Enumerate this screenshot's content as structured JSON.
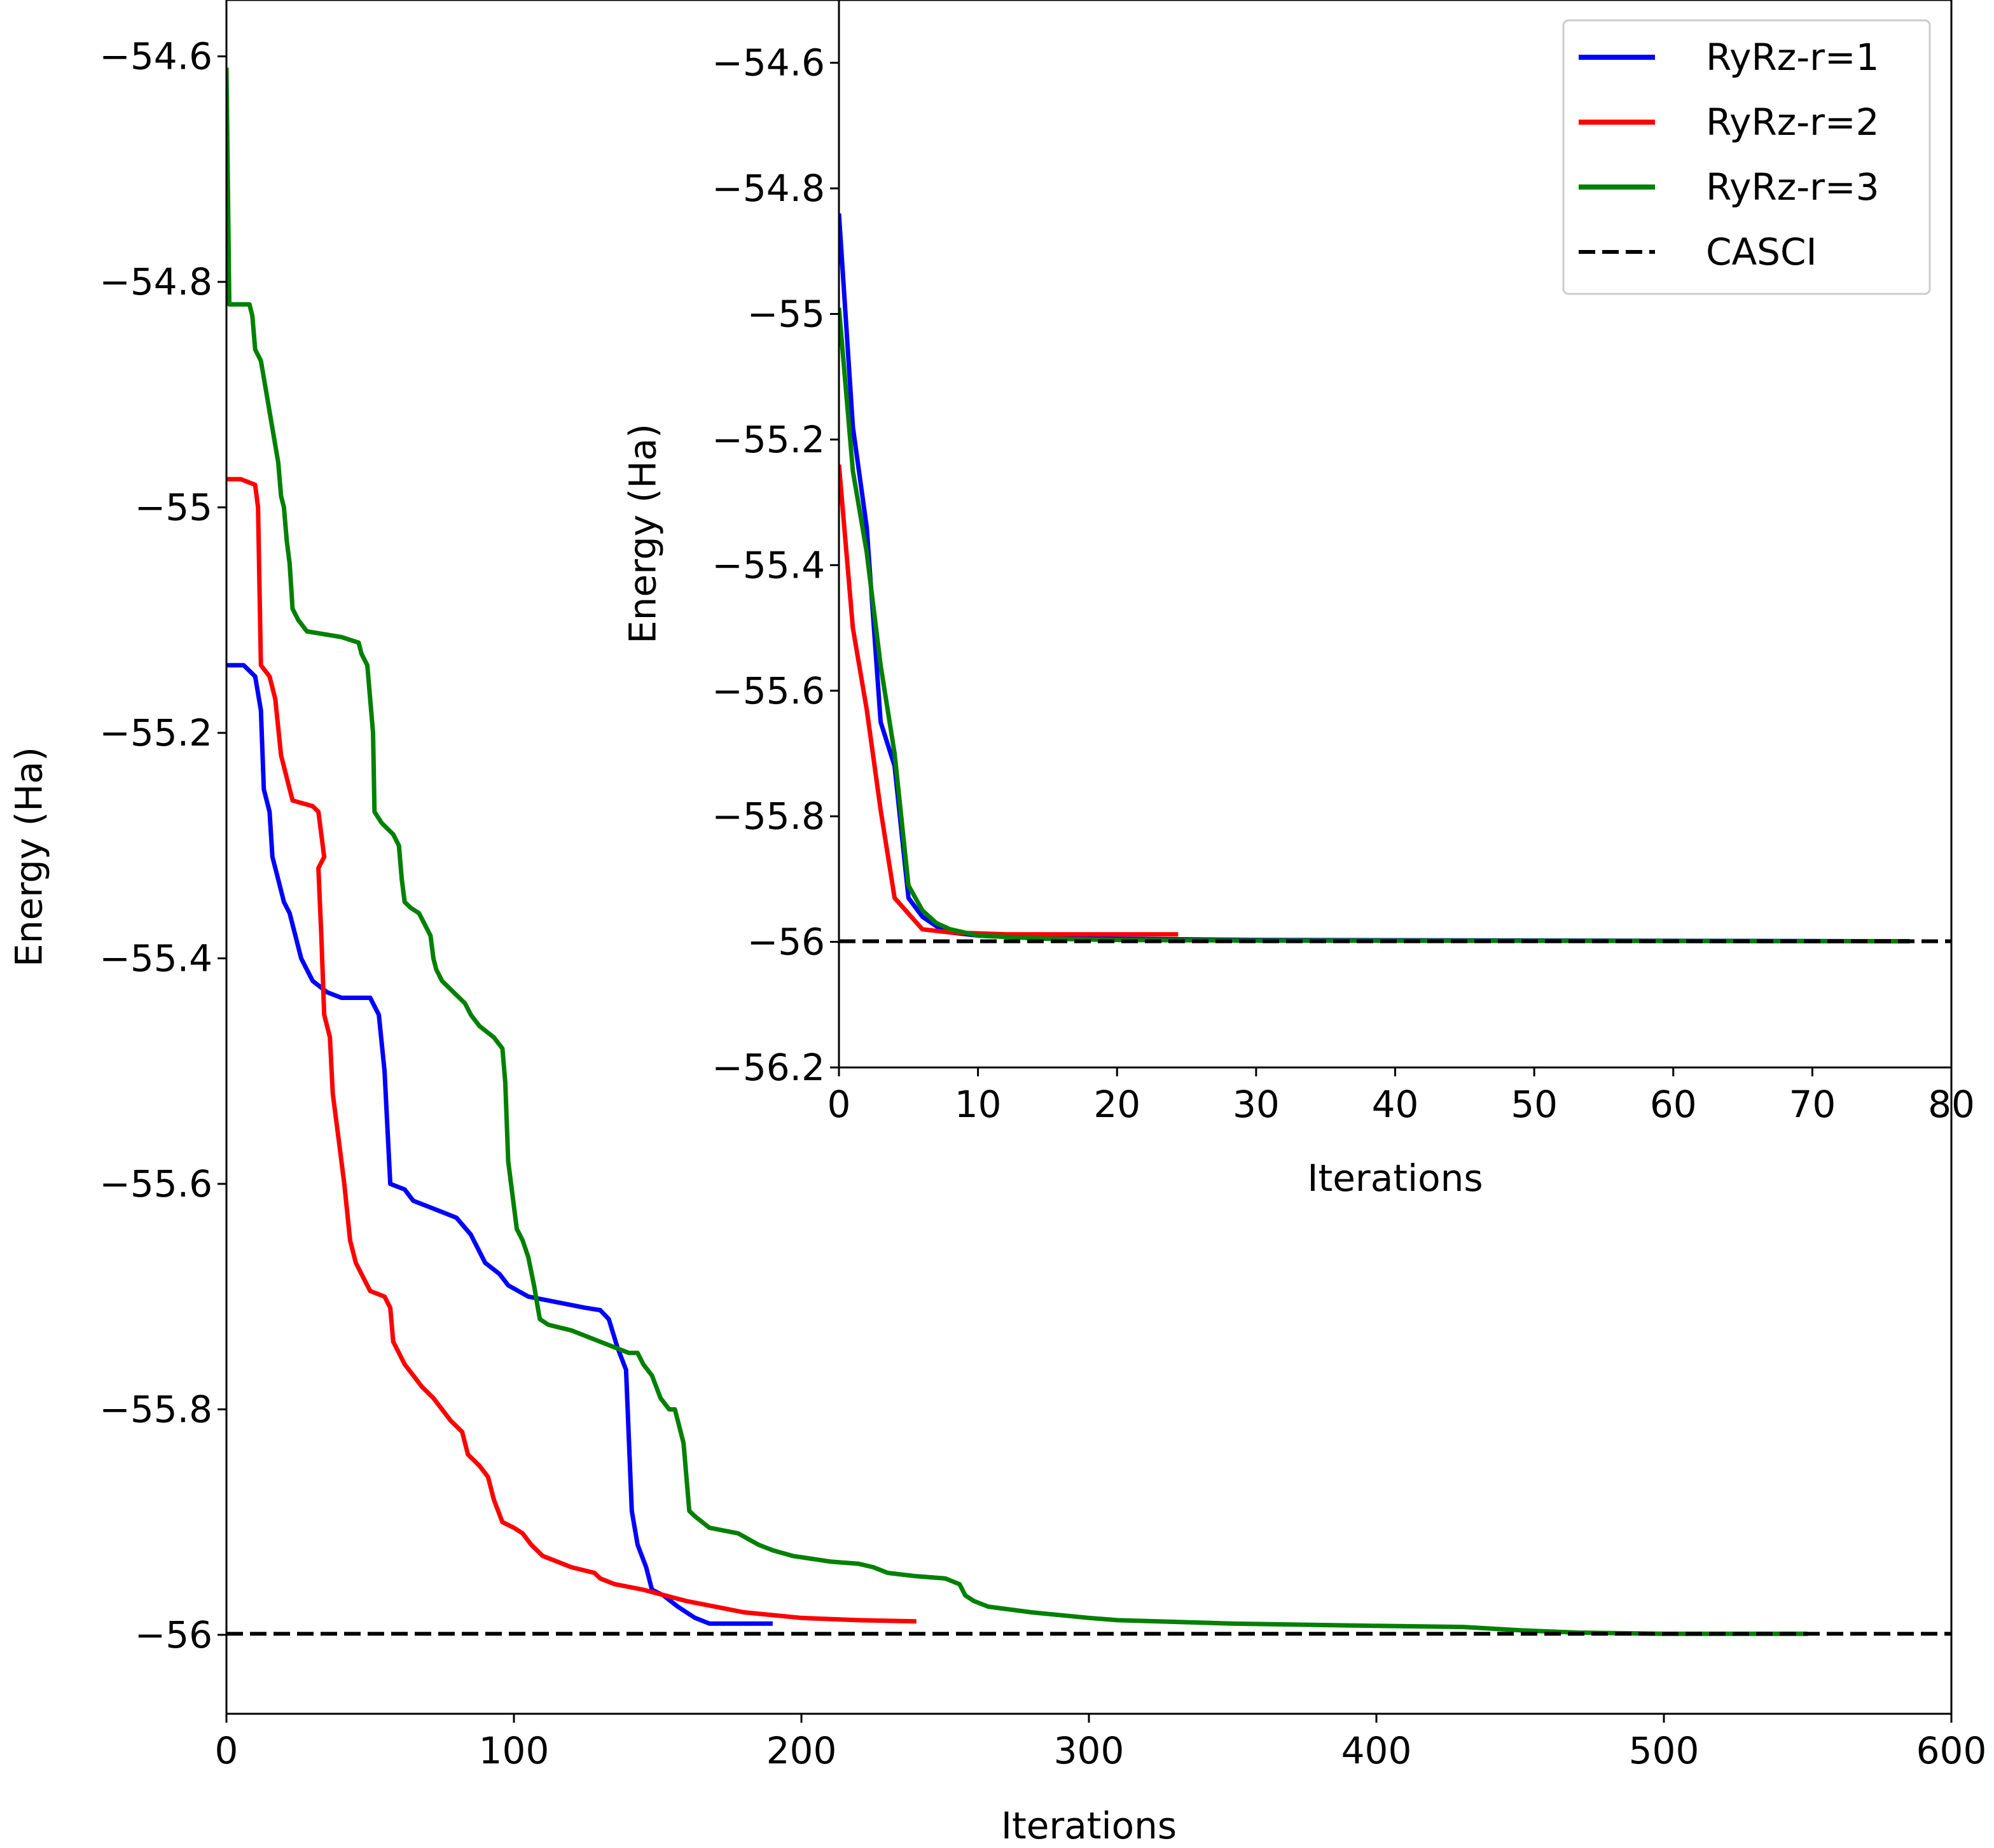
{
  "chart_data": [
    {
      "id": "main",
      "type": "line",
      "xlabel": "Iterations",
      "ylabel": "Energy (Ha)",
      "xlim": [
        0,
        600
      ],
      "ylim": [
        -56.07,
        -54.55
      ],
      "xticks": [
        0,
        100,
        200,
        300,
        400,
        500,
        600
      ],
      "yticks": [
        -54.6,
        -54.8,
        -55.0,
        -55.2,
        -55.4,
        -55.6,
        -55.8,
        -56.0
      ],
      "series": [
        {
          "name": "RyRz-r=1",
          "color": "#0000ff",
          "points": [
            [
              0,
              -55.14
            ],
            [
              6,
              -55.14
            ],
            [
              10,
              -55.15
            ],
            [
              12,
              -55.18
            ],
            [
              13,
              -55.25
            ],
            [
              15,
              -55.27
            ],
            [
              16,
              -55.31
            ],
            [
              18,
              -55.33
            ],
            [
              20,
              -55.35
            ],
            [
              22,
              -55.36
            ],
            [
              24,
              -55.38
            ],
            [
              26,
              -55.4
            ],
            [
              30,
              -55.42
            ],
            [
              35,
              -55.43
            ],
            [
              40,
              -55.435
            ],
            [
              45,
              -55.435
            ],
            [
              50,
              -55.435
            ],
            [
              53,
              -55.45
            ],
            [
              55,
              -55.5
            ],
            [
              57,
              -55.6
            ],
            [
              62,
              -55.605
            ],
            [
              65,
              -55.615
            ],
            [
              70,
              -55.62
            ],
            [
              75,
              -55.625
            ],
            [
              80,
              -55.63
            ],
            [
              85,
              -55.645
            ],
            [
              90,
              -55.67
            ],
            [
              95,
              -55.68
            ],
            [
              98,
              -55.69
            ],
            [
              105,
              -55.7
            ],
            [
              115,
              -55.705
            ],
            [
              125,
              -55.71
            ],
            [
              130,
              -55.712
            ],
            [
              133,
              -55.72
            ],
            [
              136,
              -55.745
            ],
            [
              139,
              -55.765
            ],
            [
              141,
              -55.89
            ],
            [
              143,
              -55.92
            ],
            [
              146,
              -55.94
            ],
            [
              148,
              -55.96
            ],
            [
              152,
              -55.965
            ],
            [
              157,
              -55.975
            ],
            [
              160,
              -55.98
            ],
            [
              163,
              -55.985
            ],
            [
              168,
              -55.99
            ],
            [
              175,
              -55.99
            ],
            [
              182,
              -55.99
            ],
            [
              190,
              -55.99
            ]
          ]
        },
        {
          "name": "RyRz-r=2",
          "color": "#ff0000",
          "points": [
            [
              0,
              -54.975
            ],
            [
              5,
              -54.975
            ],
            [
              10,
              -54.98
            ],
            [
              11,
              -55.0
            ],
            [
              12,
              -55.14
            ],
            [
              15,
              -55.15
            ],
            [
              17,
              -55.17
            ],
            [
              19,
              -55.22
            ],
            [
              21,
              -55.24
            ],
            [
              23,
              -55.26
            ],
            [
              30,
              -55.265
            ],
            [
              32,
              -55.27
            ],
            [
              34,
              -55.31
            ],
            [
              32,
              -55.32
            ],
            [
              33,
              -55.38
            ],
            [
              34,
              -55.45
            ],
            [
              36,
              -55.47
            ],
            [
              37,
              -55.52
            ],
            [
              39,
              -55.56
            ],
            [
              41,
              -55.6
            ],
            [
              43,
              -55.65
            ],
            [
              45,
              -55.67
            ],
            [
              47,
              -55.68
            ],
            [
              50,
              -55.695
            ],
            [
              55,
              -55.7
            ],
            [
              57,
              -55.71
            ],
            [
              58,
              -55.74
            ],
            [
              60,
              -55.75
            ],
            [
              62,
              -55.76
            ],
            [
              65,
              -55.77
            ],
            [
              68,
              -55.78
            ],
            [
              72,
              -55.79
            ],
            [
              75,
              -55.8
            ],
            [
              78,
              -55.81
            ],
            [
              82,
              -55.82
            ],
            [
              84,
              -55.84
            ],
            [
              88,
              -55.85
            ],
            [
              91,
              -55.86
            ],
            [
              93,
              -55.88
            ],
            [
              96,
              -55.9
            ],
            [
              100,
              -55.905
            ],
            [
              103,
              -55.91
            ],
            [
              106,
              -55.92
            ],
            [
              110,
              -55.93
            ],
            [
              120,
              -55.94
            ],
            [
              128,
              -55.945
            ],
            [
              130,
              -55.95
            ],
            [
              135,
              -55.955
            ],
            [
              145,
              -55.96
            ],
            [
              160,
              -55.97
            ],
            [
              180,
              -55.98
            ],
            [
              200,
              -55.985
            ],
            [
              220,
              -55.987
            ],
            [
              240,
              -55.988
            ]
          ]
        },
        {
          "name": "RyRz-r=3",
          "color": "#008000",
          "points": [
            [
              0,
              -54.61
            ],
            [
              1,
              -54.82
            ],
            [
              5,
              -54.82
            ],
            [
              8,
              -54.82
            ],
            [
              9,
              -54.83
            ],
            [
              10,
              -54.86
            ],
            [
              12,
              -54.87
            ],
            [
              14,
              -54.9
            ],
            [
              16,
              -54.93
            ],
            [
              18,
              -54.96
            ],
            [
              19,
              -54.99
            ],
            [
              20,
              -55.0
            ],
            [
              21,
              -55.03
            ],
            [
              22,
              -55.05
            ],
            [
              23,
              -55.09
            ],
            [
              25,
              -55.1
            ],
            [
              28,
              -55.11
            ],
            [
              40,
              -55.115
            ],
            [
              46,
              -55.12
            ],
            [
              47,
              -55.13
            ],
            [
              49,
              -55.14
            ],
            [
              50,
              -55.17
            ],
            [
              51,
              -55.2
            ],
            [
              51.5,
              -55.27
            ],
            [
              54,
              -55.28
            ],
            [
              58,
              -55.29
            ],
            [
              60,
              -55.3
            ],
            [
              61,
              -55.33
            ],
            [
              62,
              -55.35
            ],
            [
              64,
              -55.355
            ],
            [
              67,
              -55.36
            ],
            [
              69,
              -55.37
            ],
            [
              71,
              -55.38
            ],
            [
              72,
              -55.4
            ],
            [
              73,
              -55.41
            ],
            [
              75,
              -55.42
            ],
            [
              79,
              -55.43
            ],
            [
              83,
              -55.44
            ],
            [
              85,
              -55.45
            ],
            [
              88,
              -55.46
            ],
            [
              93,
              -55.47
            ],
            [
              96,
              -55.48
            ],
            [
              97,
              -55.51
            ],
            [
              98,
              -55.58
            ],
            [
              99,
              -55.6
            ],
            [
              100,
              -55.62
            ],
            [
              101,
              -55.64
            ],
            [
              103,
              -55.65
            ],
            [
              105,
              -55.665
            ],
            [
              107,
              -55.69
            ],
            [
              109,
              -55.72
            ],
            [
              112,
              -55.725
            ],
            [
              120,
              -55.73
            ],
            [
              125,
              -55.735
            ],
            [
              130,
              -55.74
            ],
            [
              135,
              -55.745
            ],
            [
              140,
              -55.75
            ],
            [
              143,
              -55.75
            ],
            [
              145,
              -55.76
            ],
            [
              148,
              -55.77
            ],
            [
              151,
              -55.79
            ],
            [
              154,
              -55.8
            ],
            [
              156,
              -55.8
            ],
            [
              159,
              -55.83
            ],
            [
              160,
              -55.86
            ],
            [
              161,
              -55.89
            ],
            [
              163,
              -55.895
            ],
            [
              168,
              -55.905
            ],
            [
              178,
              -55.91
            ],
            [
              185,
              -55.92
            ],
            [
              190,
              -55.925
            ],
            [
              197,
              -55.93
            ],
            [
              210,
              -55.935
            ],
            [
              220,
              -55.937
            ],
            [
              225,
              -55.94
            ],
            [
              230,
              -55.945
            ],
            [
              240,
              -55.948
            ],
            [
              250,
              -55.95
            ],
            [
              255,
              -55.955
            ],
            [
              257,
              -55.965
            ],
            [
              260,
              -55.97
            ],
            [
              265,
              -55.975
            ],
            [
              280,
              -55.98
            ],
            [
              300,
              -55.985
            ],
            [
              310,
              -55.987
            ],
            [
              350,
              -55.99
            ],
            [
              400,
              -55.992
            ],
            [
              430,
              -55.993
            ],
            [
              450,
              -55.996
            ],
            [
              470,
              -55.998
            ],
            [
              500,
              -55.999
            ],
            [
              550,
              -55.999
            ]
          ]
        },
        {
          "name": "CASCI",
          "color": "#000000",
          "dashed": true,
          "points": [
            [
              0,
              -55.999
            ],
            [
              600,
              -55.999
            ]
          ]
        }
      ]
    },
    {
      "id": "inset",
      "type": "line",
      "xlabel": "Iterations",
      "ylabel": "Energy (Ha)",
      "xlim": [
        0,
        80
      ],
      "ylim": [
        -56.2,
        -54.5
      ],
      "xticks": [
        0,
        10,
        20,
        30,
        40,
        50,
        60,
        70,
        80
      ],
      "yticks": [
        -54.6,
        -54.8,
        -55.0,
        -55.2,
        -55.4,
        -55.6,
        -55.8,
        -56.0,
        -56.2
      ],
      "series": [
        {
          "name": "RyRz-r=1",
          "color": "#0000ff",
          "points": [
            [
              0,
              -54.84
            ],
            [
              1,
              -55.18
            ],
            [
              2,
              -55.34
            ],
            [
              3,
              -55.65
            ],
            [
              4,
              -55.72
            ],
            [
              5,
              -55.93
            ],
            [
              6,
              -55.96
            ],
            [
              7,
              -55.975
            ],
            [
              8,
              -55.985
            ],
            [
              10,
              -55.99
            ],
            [
              15,
              -55.993
            ],
            [
              20,
              -55.995
            ],
            [
              30,
              -55.997
            ],
            [
              77,
              -55.999
            ]
          ]
        },
        {
          "name": "RyRz-r=2",
          "color": "#ff0000",
          "points": [
            [
              0,
              -55.24
            ],
            [
              1,
              -55.5
            ],
            [
              2,
              -55.63
            ],
            [
              3,
              -55.79
            ],
            [
              4,
              -55.93
            ],
            [
              5,
              -55.955
            ],
            [
              6,
              -55.98
            ],
            [
              8,
              -55.985
            ],
            [
              12,
              -55.988
            ],
            [
              24.4,
              -55.988
            ]
          ]
        },
        {
          "name": "RyRz-r=3",
          "color": "#008000",
          "points": [
            [
              0,
              -54.99
            ],
            [
              1,
              -55.25
            ],
            [
              2,
              -55.38
            ],
            [
              3,
              -55.56
            ],
            [
              4,
              -55.7
            ],
            [
              5,
              -55.91
            ],
            [
              6,
              -55.95
            ],
            [
              7,
              -55.97
            ],
            [
              8,
              -55.98
            ],
            [
              10,
              -55.99
            ],
            [
              15,
              -55.995
            ],
            [
              20,
              -55.997
            ],
            [
              30,
              -55.998
            ],
            [
              77,
              -55.999
            ]
          ]
        },
        {
          "name": "CASCI",
          "color": "#000000",
          "dashed": true,
          "points": [
            [
              0,
              -55.999
            ],
            [
              80,
              -55.999
            ]
          ]
        }
      ],
      "legend": {
        "placement": "top-right",
        "entries": [
          "RyRz-r=1",
          "RyRz-r=2",
          "RyRz-r=3",
          "CASCI"
        ]
      }
    }
  ]
}
